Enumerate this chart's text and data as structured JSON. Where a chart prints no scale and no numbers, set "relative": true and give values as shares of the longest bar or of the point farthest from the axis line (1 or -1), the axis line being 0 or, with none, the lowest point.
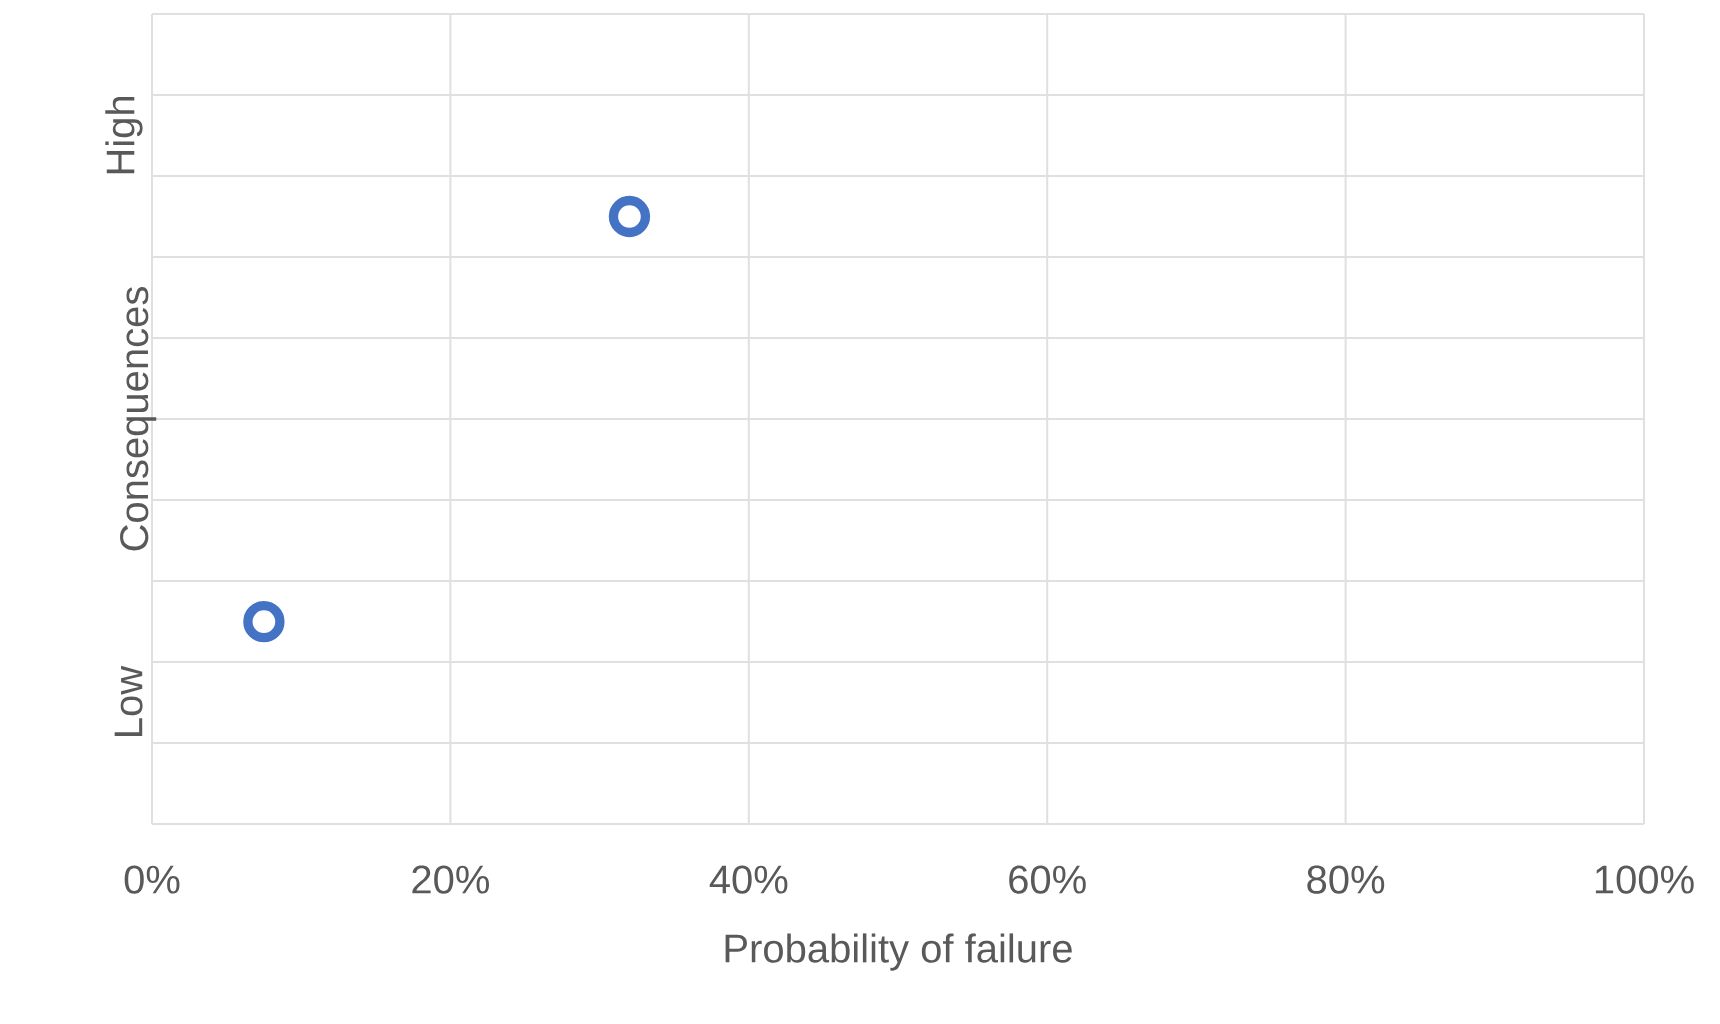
{
  "chart_data": {
    "type": "scatter",
    "xlabel": "Probability of failure",
    "ylabel": "Consequences",
    "x": [
      7.5,
      32
    ],
    "series": [
      {
        "color": "#4472c4",
        "values": [
          0.333,
          1
        ]
      }
    ],
    "relative": true,
    "marker": "circle",
    "xlim": [
      0,
      100
    ],
    "xticks": [
      {
        "value": 0,
        "label": "0%"
      },
      {
        "value": 20,
        "label": "20%"
      },
      {
        "value": 40,
        "label": "40%"
      },
      {
        "value": 60,
        "label": "60%"
      },
      {
        "value": 80,
        "label": "80%"
      },
      {
        "value": 100,
        "label": "100%"
      }
    ],
    "annotations": [
      "Low",
      "High"
    ],
    "grid": true
  }
}
